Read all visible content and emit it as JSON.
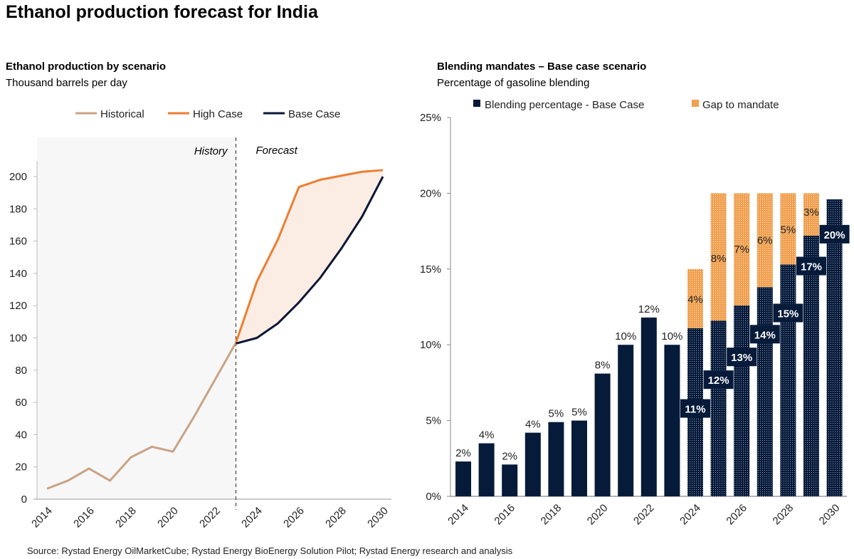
{
  "title": "Ethanol production forecast for India",
  "source": "Source: Rystad Energy OilMarketCube; Rystad Energy BioEnergy Solution Pilot; Rystad Energy research and analysis",
  "chart_data": [
    {
      "type": "line",
      "title": "Ethanol production by scenario",
      "subtitle": "Thousand barrels per day",
      "legend_position": "top",
      "annotations": [
        "History",
        "Forecast"
      ],
      "xlim": [
        2014,
        2030
      ],
      "ylim": [
        0,
        210
      ],
      "yticks": [
        0,
        20,
        40,
        60,
        80,
        100,
        120,
        140,
        160,
        180,
        200
      ],
      "xticks": [
        2014,
        2016,
        2018,
        2020,
        2022,
        2024,
        2026,
        2028,
        2030
      ],
      "series": [
        {
          "name": "Historical",
          "color": "#C9A385",
          "x": [
            2014,
            2015,
            2016,
            2017,
            2018,
            2019,
            2020,
            2021,
            2022,
            2023
          ],
          "y": [
            6.5,
            11.5,
            19,
            11.5,
            26,
            32.5,
            29.5,
            51,
            74,
            97
          ]
        },
        {
          "name": "High Case",
          "color": "#ED7D31",
          "x": [
            2023,
            2024,
            2025,
            2026,
            2027,
            2028,
            2029,
            2030
          ],
          "y": [
            97,
            135,
            161,
            193.5,
            198,
            200.5,
            203,
            204
          ]
        },
        {
          "name": "Base Case",
          "color": "#0B1736",
          "x": [
            2023,
            2024,
            2025,
            2026,
            2027,
            2028,
            2029,
            2030
          ],
          "y": [
            96.5,
            100,
            109,
            122,
            137,
            155,
            175,
            200
          ]
        }
      ],
      "band_fill": "#FCEDE4",
      "history_shade": "#F7F7F7"
    },
    {
      "type": "bar",
      "stacked": true,
      "title": "Blending mandates – Base case scenario",
      "subtitle": "Percentage of gasoline blending",
      "legend_position": "top",
      "ylim": [
        0,
        25
      ],
      "yticks": [
        "0%",
        "5%",
        "10%",
        "15%",
        "20%",
        "25%"
      ],
      "xticks": [
        2014,
        2016,
        2018,
        2020,
        2022,
        2024,
        2026,
        2028,
        2030
      ],
      "categories": [
        2014,
        2015,
        2016,
        2017,
        2018,
        2019,
        2020,
        2021,
        2022,
        2023,
        2024,
        2025,
        2026,
        2027,
        2028,
        2029,
        2030
      ],
      "series": [
        {
          "name": "Blending percentage - Base Case",
          "color": "#061A3A",
          "values": [
            2.3,
            3.5,
            2.1,
            4.2,
            4.9,
            5.0,
            8.1,
            10.0,
            11.8,
            10.0,
            11.1,
            11.6,
            12.6,
            13.8,
            15.3,
            17.2,
            19.6
          ],
          "labels": [
            "2%",
            "4%",
            "2%",
            "4%",
            "5%",
            "5%",
            "8%",
            "10%",
            "12%",
            "10%",
            "11%",
            "12%",
            "13%",
            "14%",
            "15%",
            "17%",
            "20%"
          ]
        },
        {
          "name": "Gap to mandate",
          "color": "#F0A050",
          "values": [
            0,
            0,
            0,
            0,
            0,
            0,
            0,
            0,
            0,
            0,
            3.9,
            8.4,
            7.4,
            6.2,
            4.7,
            2.8,
            0
          ],
          "labels": [
            "",
            "",
            "",
            "",
            "",
            "",
            "",
            "",
            "",
            "",
            "4%",
            "8%",
            "7%",
            "6%",
            "5%",
            "3%",
            ""
          ]
        }
      ],
      "forecast_start": 2024
    }
  ]
}
